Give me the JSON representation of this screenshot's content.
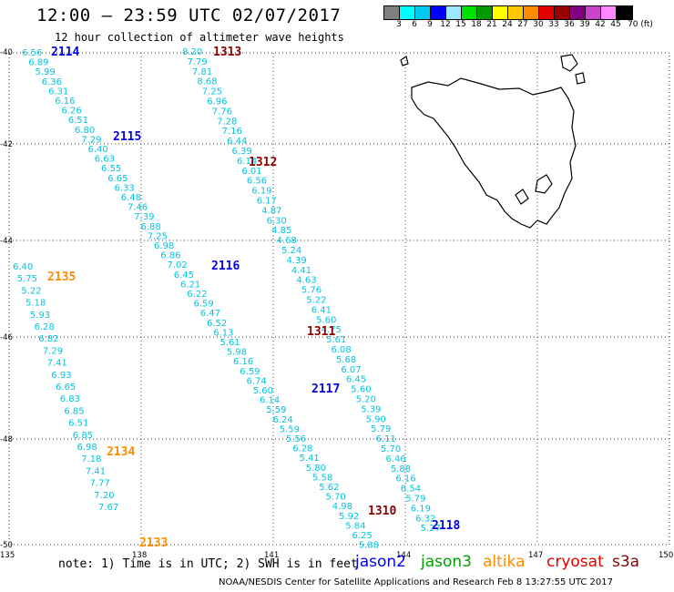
{
  "header": {
    "title": "12:00 — 23:59 UTC 02/07/2017",
    "subtitle": "12 hour collection of altimeter wave heights"
  },
  "colorbar": {
    "colors": [
      "#808080",
      "#00ffff",
      "#00c8f0",
      "#0000ff",
      "#9ce8ff",
      "#00e000",
      "#009900",
      "#ffff00",
      "#ffc800",
      "#ff8c00",
      "#e00000",
      "#990000",
      "#800080",
      "#cc44cc",
      "#ff88ff",
      "#000000"
    ],
    "labels": [
      "3",
      "6",
      "9",
      "12",
      "15",
      "18",
      "21",
      "24",
      "27",
      "30",
      "33",
      "36",
      "39",
      "42",
      "45",
      "70 (ft)"
    ]
  },
  "map": {
    "lat_labels": [
      "-40",
      "-42",
      "-44",
      "-46",
      "-48",
      "-50"
    ],
    "lon_labels": [
      "135",
      "138",
      "141",
      "144",
      "147",
      "150"
    ],
    "orbit_labels": [
      {
        "text": "2114",
        "color": "#0000ee"
      },
      {
        "text": "1313",
        "color": "#8b0000"
      },
      {
        "text": "2115",
        "color": "#0000ee"
      },
      {
        "text": "1312",
        "color": "#8b0000"
      },
      {
        "text": "2116",
        "color": "#0000ee"
      },
      {
        "text": "2135",
        "color": "#ff8c00"
      },
      {
        "text": "1311",
        "color": "#8b0000"
      },
      {
        "text": "2117",
        "color": "#0000ee"
      },
      {
        "text": "2134",
        "color": "#ff8c00"
      },
      {
        "text": "1310",
        "color": "#8b0000"
      },
      {
        "text": "2118",
        "color": "#0000ee"
      },
      {
        "text": "2133",
        "color": "#ff8c00"
      }
    ],
    "wave_heights": [
      "6.56",
      "6.89",
      "5.99",
      "6.36",
      "6.31",
      "6.16",
      "6.26",
      "6.51",
      "6.80",
      "7.29",
      "6.40",
      "6.63",
      "6.55",
      "6.65",
      "6.33",
      "6.48",
      "7.46",
      "7.39",
      "6.88",
      "7.25",
      "6.98",
      "6.86",
      "7.02",
      "6.45",
      "6.21",
      "6.22",
      "6.59",
      "6.47",
      "6.52",
      "6.13",
      "5.61",
      "5.98",
      "6.16",
      "6.59",
      "6.74",
      "5.60",
      "6.14",
      "5.59",
      "6.24",
      "5.59",
      "5.56",
      "6.28",
      "5.41",
      "5.80",
      "5.58",
      "5.62",
      "5.70",
      "4.98",
      "5.92",
      "5.84",
      "6.25",
      "5.88",
      "8.20",
      "7.79",
      "7.81",
      "8.68",
      "7.25",
      "6.96",
      "7.76",
      "7.28",
      "7.16",
      "6.44",
      "6.39",
      "6.14",
      "6.01",
      "6.56",
      "6.19",
      "6.17",
      "4.87",
      "6.30",
      "4.85",
      "4.68",
      "5.24",
      "4.39",
      "4.41",
      "4.63",
      "5.76",
      "5.22",
      "6.41",
      "5.60",
      "4.75",
      "5.61",
      "6.08",
      "5.68",
      "6.07",
      "6.45",
      "5.60",
      "5.20",
      "5.39",
      "5.90",
      "5.79",
      "6.11",
      "5.70",
      "6.46",
      "5.88",
      "6.16",
      "6.54",
      "5.79",
      "6.19",
      "6.32",
      "5.27",
      "6.40",
      "5.75",
      "5.22",
      "5.18",
      "5.93",
      "6.28",
      "6.82",
      "7.29",
      "7.41",
      "6.93",
      "6.65",
      "6.83",
      "6.85",
      "6.51",
      "6.85",
      "6.98",
      "7.18",
      "7.41",
      "7.77",
      "7.20",
      "7.67"
    ]
  },
  "note": "note: 1) Time is in UTC; 2) SWH is in feet",
  "satellites": [
    {
      "name": "jason2",
      "color": "#0000ee"
    },
    {
      "name": "jason3",
      "color": "#00a000"
    },
    {
      "name": "altika",
      "color": "#ff8c00"
    },
    {
      "name": "cryosat",
      "color": "#e00000"
    },
    {
      "name": "s3a",
      "color": "#8b0000"
    }
  ],
  "footer": "NOAA/NESDIS Center for Satellite Applications and Research    Feb  8 13:27:55 UTC 2017"
}
